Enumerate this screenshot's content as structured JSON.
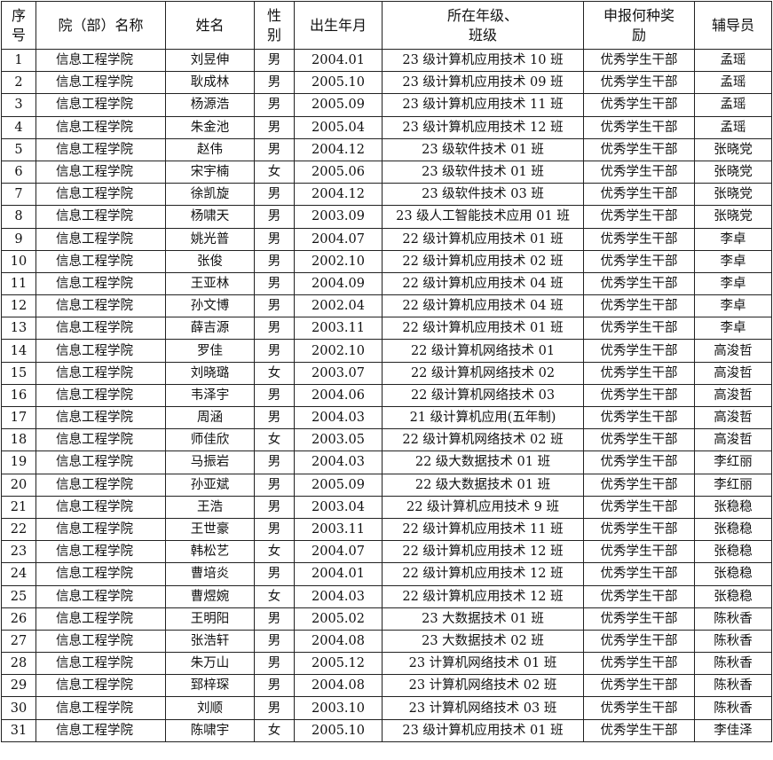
{
  "headers": [
    "序号",
    "院（部）名称",
    "姓名",
    "性别",
    "出生年月",
    "所在年级、班级",
    "申报何种奖励",
    "辅导员"
  ],
  "header_lines": {
    "seq": [
      "序",
      "号"
    ],
    "gender": [
      "性",
      "别"
    ],
    "class": [
      "所在年级、",
      "班级"
    ],
    "award": [
      "申报何种奖",
      "励"
    ]
  },
  "rows": [
    [
      "1",
      "信息工程学院",
      "刘昱伸",
      "男",
      "2004.01",
      "23 级计算机应用技术 10 班",
      "优秀学生干部",
      "孟瑶"
    ],
    [
      "2",
      "信息工程学院",
      "耿成林",
      "男",
      "2005.10",
      "23 级计算机应用技术 09 班",
      "优秀学生干部",
      "孟瑶"
    ],
    [
      "3",
      "信息工程学院",
      "杨源浩",
      "男",
      "2005.09",
      "23 级计算机应用技术 11 班",
      "优秀学生干部",
      "孟瑶"
    ],
    [
      "4",
      "信息工程学院",
      "朱金池",
      "男",
      "2005.04",
      "23 级计算机应用技术 12 班",
      "优秀学生干部",
      "孟瑶"
    ],
    [
      "5",
      "信息工程学院",
      "赵伟",
      "男",
      "2004.12",
      "23 级软件技术 01 班",
      "优秀学生干部",
      "张晓党"
    ],
    [
      "6",
      "信息工程学院",
      "宋宇楠",
      "女",
      "2005.06",
      "23 级软件技术 01 班",
      "优秀学生干部",
      "张晓党"
    ],
    [
      "7",
      "信息工程学院",
      "徐凯旋",
      "男",
      "2004.12",
      "23 级软件技术 03 班",
      "优秀学生干部",
      "张晓党"
    ],
    [
      "8",
      "信息工程学院",
      "杨啸天",
      "男",
      "2003.09",
      "23 级人工智能技术应用 01 班",
      "优秀学生干部",
      "张晓党"
    ],
    [
      "9",
      "信息工程学院",
      "姚光普",
      "男",
      "2004.07",
      "22 级计算机应用技术 01 班",
      "优秀学生干部",
      "李卓"
    ],
    [
      "10",
      "信息工程学院",
      "张俊",
      "男",
      "2002.10",
      "22 级计算机应用技术 02 班",
      "优秀学生干部",
      "李卓"
    ],
    [
      "11",
      "信息工程学院",
      "王亚林",
      "男",
      "2004.09",
      "22 级计算机应用技术 04 班",
      "优秀学生干部",
      "李卓"
    ],
    [
      "12",
      "信息工程学院",
      "孙文博",
      "男",
      "2002.04",
      "22 级计算机应用技术 04 班",
      "优秀学生干部",
      "李卓"
    ],
    [
      "13",
      "信息工程学院",
      "薛吉源",
      "男",
      "2003.11",
      "22 级计算机应用技术 01 班",
      "优秀学生干部",
      "李卓"
    ],
    [
      "14",
      "信息工程学院",
      "罗佳",
      "男",
      "2002.10",
      "22 级计算机网络技术 01",
      "优秀学生干部",
      "高浚哲"
    ],
    [
      "15",
      "信息工程学院",
      "刘晓璐",
      "女",
      "2003.07",
      "22 级计算机网络技术 02",
      "优秀学生干部",
      "高浚哲"
    ],
    [
      "16",
      "信息工程学院",
      "韦泽宇",
      "男",
      "2004.06",
      "22 级计算机网络技术 03",
      "优秀学生干部",
      "高浚哲"
    ],
    [
      "17",
      "信息工程学院",
      "周涵",
      "男",
      "2004.03",
      "21 级计算机应用(五年制)",
      "优秀学生干部",
      "高浚哲"
    ],
    [
      "18",
      "信息工程学院",
      "师佳欣",
      "女",
      "2003.05",
      "22 级计算机网络技术 02 班",
      "优秀学生干部",
      "高浚哲"
    ],
    [
      "19",
      "信息工程学院",
      "马振岩",
      "男",
      "2004.03",
      "22 级大数据技术 01 班",
      "优秀学生干部",
      "李红丽"
    ],
    [
      "20",
      "信息工程学院",
      "孙亚斌",
      "男",
      "2005.09",
      "22 级大数据技术 01 班",
      "优秀学生干部",
      "李红丽"
    ],
    [
      "21",
      "信息工程学院",
      "王浩",
      "男",
      "2003.04",
      "22 级计算机应用技术 9 班",
      "优秀学生干部",
      "张稳稳"
    ],
    [
      "22",
      "信息工程学院",
      "王世豪",
      "男",
      "2003.11",
      "22 级计算机应用技术 11 班",
      "优秀学生干部",
      "张稳稳"
    ],
    [
      "23",
      "信息工程学院",
      "韩松艺",
      "女",
      "2004.07",
      "22 级计算机应用技术 12 班",
      "优秀学生干部",
      "张稳稳"
    ],
    [
      "24",
      "信息工程学院",
      "曹培炎",
      "男",
      "2004.01",
      "22 级计算机应用技术 12 班",
      "优秀学生干部",
      "张稳稳"
    ],
    [
      "25",
      "信息工程学院",
      "曹煜婉",
      "女",
      "2004.03",
      "22 级计算机应用技术 12 班",
      "优秀学生干部",
      "张稳稳"
    ],
    [
      "26",
      "信息工程学院",
      "王明阳",
      "男",
      "2005.02",
      "23 大数据技术 01 班",
      "优秀学生干部",
      "陈秋香"
    ],
    [
      "27",
      "信息工程学院",
      "张浩轩",
      "男",
      "2004.08",
      "23 大数据技术 02 班",
      "优秀学生干部",
      "陈秋香"
    ],
    [
      "28",
      "信息工程学院",
      "朱万山",
      "男",
      "2005.12",
      "23 计算机网络技术 01 班",
      "优秀学生干部",
      "陈秋香"
    ],
    [
      "29",
      "信息工程学院",
      "郅梓琛",
      "男",
      "2004.08",
      "23 计算机网络技术 02 班",
      "优秀学生干部",
      "陈秋香"
    ],
    [
      "30",
      "信息工程学院",
      "刘顺",
      "男",
      "2003.10",
      "23 计算机网络技术 03 班",
      "优秀学生干部",
      "陈秋香"
    ],
    [
      "31",
      "信息工程学院",
      "陈啸宇",
      "女",
      "2005.10",
      "23 级计算机应用技术 01 班",
      "优秀学生干部",
      "李佳泽"
    ]
  ]
}
